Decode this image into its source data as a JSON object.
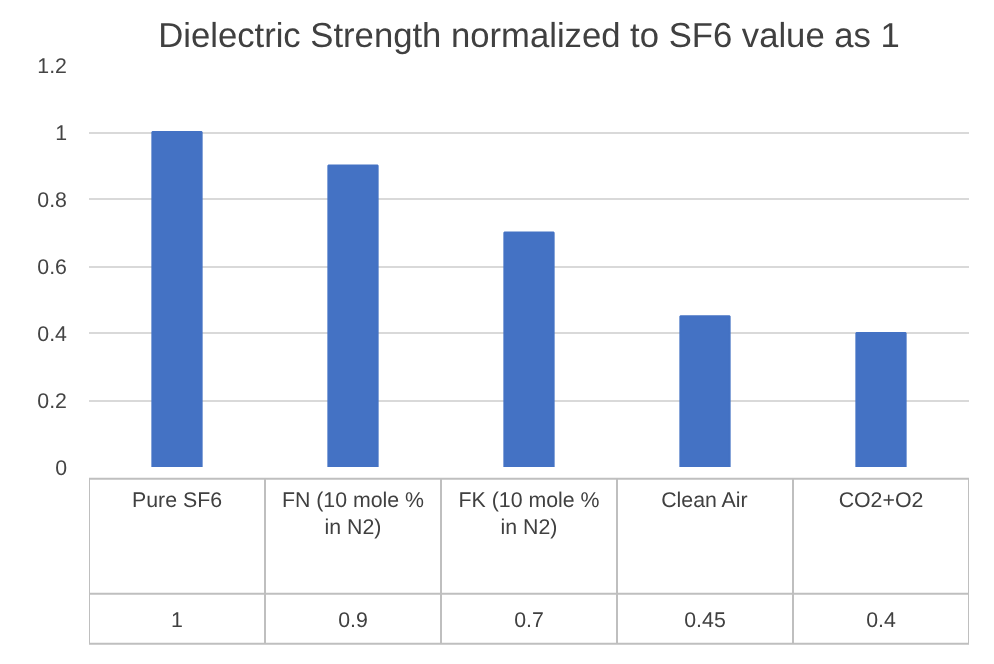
{
  "chart_data": {
    "type": "bar",
    "title": "Dielectric Strength normalized to SF6 value as 1",
    "categories": [
      "Pure SF6",
      "FN (10 mole % in N2)",
      "FK (10 mole % in N2)",
      "Clean Air",
      "CO2+O2"
    ],
    "values": [
      1,
      0.9,
      0.7,
      0.45,
      0.4
    ],
    "color": "#4472c4",
    "ylim": [
      0,
      1.2
    ],
    "yticks": [
      0,
      0.2,
      0.4,
      0.6,
      0.8,
      1,
      1.2
    ],
    "grid": "y",
    "data_labels": true
  }
}
